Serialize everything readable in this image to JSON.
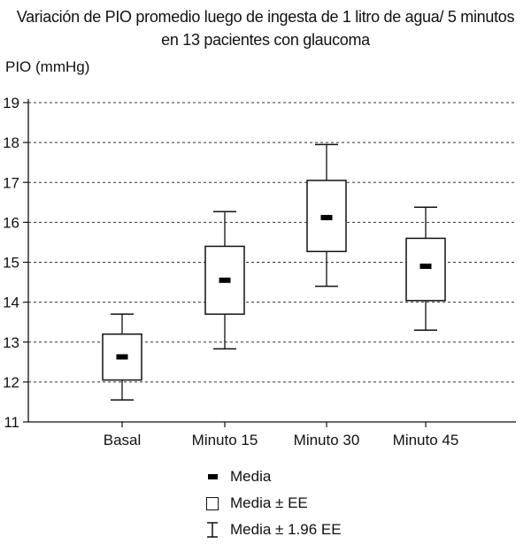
{
  "chart_data": {
    "type": "box",
    "title_lines": [
      "Variación de PIO promedio luego de ingesta de 1 litro de agua/ 5 minutos",
      "en 13 pacientes con glaucoma"
    ],
    "ylabel": "PIO (mmHg)",
    "xlabel": "",
    "ylim": [
      11,
      19
    ],
    "yticks": [
      11,
      12,
      13,
      14,
      15,
      16,
      17,
      18,
      19
    ],
    "grid": "horizontal-dashed",
    "categories": [
      "Basal",
      "Minuto 15",
      "Minuto 30",
      "Minuto 45"
    ],
    "series": [
      {
        "name": "Media",
        "values": [
          12.63,
          14.55,
          16.12,
          14.9
        ]
      },
      {
        "name": "Media ± EE",
        "low": [
          12.05,
          13.7,
          15.27,
          14.04
        ],
        "high": [
          13.2,
          15.4,
          17.05,
          15.6
        ]
      },
      {
        "name": "Media ± 1.96 EE",
        "low": [
          11.55,
          12.83,
          14.4,
          13.3
        ],
        "high": [
          13.7,
          16.27,
          17.95,
          16.38
        ]
      }
    ],
    "legend": [
      {
        "symbol": "mean",
        "label": "Media"
      },
      {
        "symbol": "box",
        "label": "Media ± EE"
      },
      {
        "symbol": "whisker",
        "label": "Media ± 1.96 EE"
      }
    ],
    "legend_position": "bottom"
  }
}
